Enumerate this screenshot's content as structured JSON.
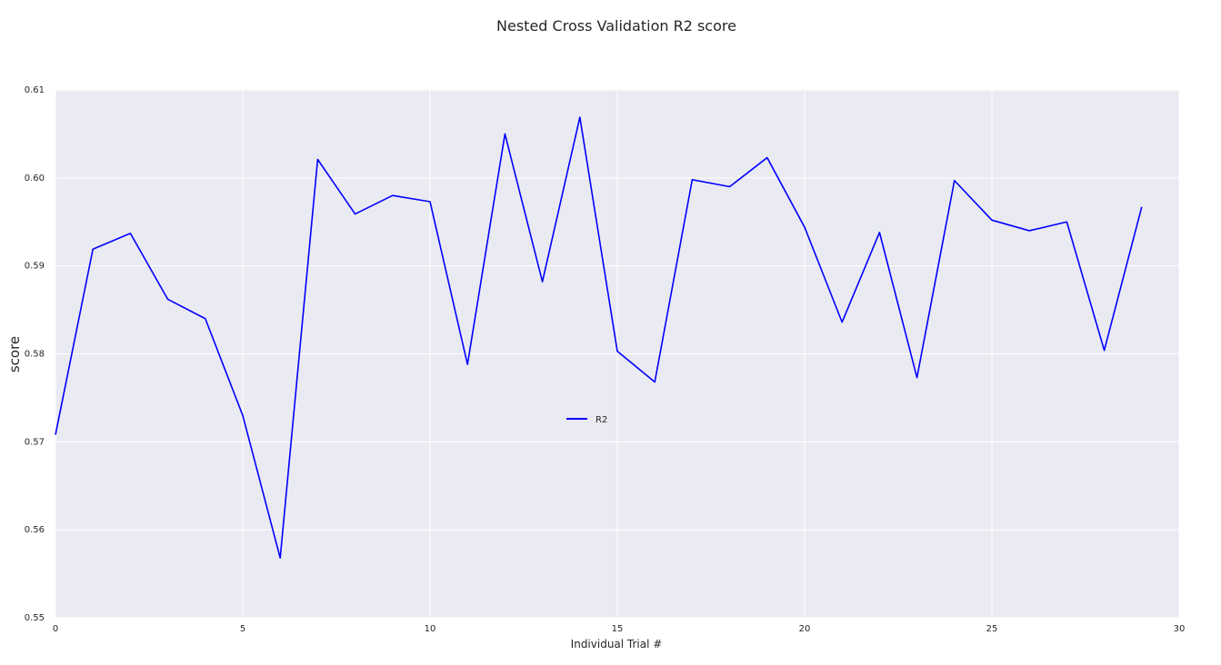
{
  "chart_data": {
    "type": "line",
    "title": "Nested Cross Validation R2 score",
    "xlabel": "Individual Trial #",
    "ylabel": "score",
    "xlim": [
      0,
      30
    ],
    "ylim": [
      0.55,
      0.61
    ],
    "xticks": [
      "0",
      "5",
      "10",
      "15",
      "20",
      "25",
      "30"
    ],
    "yticks": [
      "0.55",
      "0.56",
      "0.57",
      "0.58",
      "0.59",
      "0.60",
      "0.61"
    ],
    "grid": true,
    "legend_position": "center",
    "series": [
      {
        "name": "R2",
        "color": "#0000ff",
        "x": [
          0,
          1,
          2,
          3,
          4,
          5,
          6,
          7,
          8,
          9,
          10,
          11,
          12,
          13,
          14,
          15,
          16,
          17,
          18,
          19,
          20,
          21,
          22,
          23,
          24,
          25,
          26,
          27,
          28,
          29
        ],
        "values": [
          0.5708,
          0.5919,
          0.5937,
          0.5862,
          0.584,
          0.573,
          0.5568,
          0.6021,
          0.5959,
          0.598,
          0.5973,
          0.5788,
          0.605,
          0.5882,
          0.6069,
          0.5803,
          0.5768,
          0.5998,
          0.599,
          0.6023,
          0.5944,
          0.5836,
          0.5938,
          0.5773,
          0.5997,
          0.5952,
          0.594,
          0.595,
          0.5804,
          0.5967
        ]
      }
    ]
  }
}
